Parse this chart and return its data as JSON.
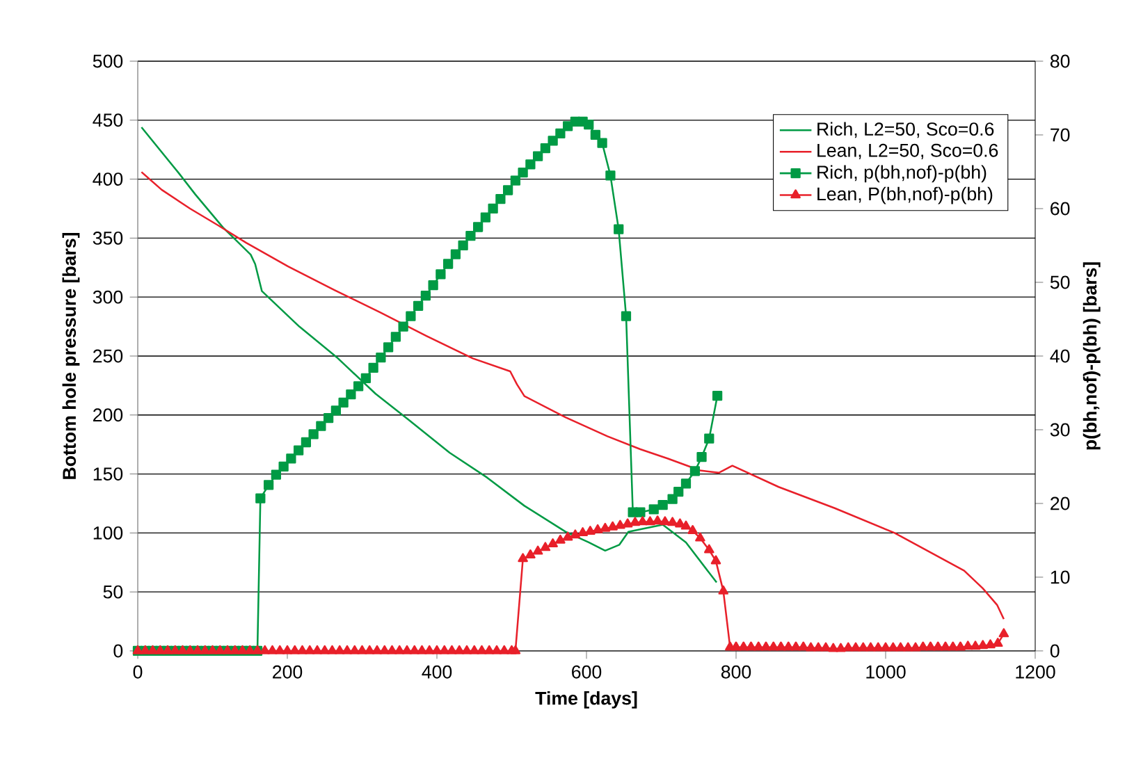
{
  "chart_data": {
    "type": "line",
    "xlabel": "Time [days]",
    "ylabel": "Bottom hole pressure [bars]",
    "y2label": "p(bh,nof)-p(bh) [bars]",
    "xlim": [
      0,
      1200
    ],
    "xticks": [
      0,
      200,
      400,
      600,
      800,
      1000,
      1200
    ],
    "ylim": [
      0,
      500
    ],
    "yticks": [
      0,
      50,
      100,
      150,
      200,
      250,
      300,
      350,
      400,
      450,
      500
    ],
    "y2lim": [
      0,
      80
    ],
    "y2ticks": [
      0,
      10,
      20,
      30,
      40,
      50,
      60,
      70,
      80
    ],
    "grid": "y",
    "legend": "top right",
    "line_style": "solid",
    "series": [
      {
        "name": "Rich, L2=50, Sco=0.6",
        "color": "#009a44",
        "marker": "none",
        "x": [
          5,
          55,
          77,
          114,
          151,
          157,
          166,
          216,
          266,
          318,
          362,
          417,
          467,
          517,
          572,
          603,
          625,
          644,
          656,
          702,
          733,
          774
        ],
        "values": [
          444,
          405,
          387,
          359,
          336,
          328,
          305,
          275,
          249,
          218,
          196,
          168,
          147,
          123,
          101,
          92,
          85,
          90,
          101,
          107,
          92,
          58
        ]
      },
      {
        "name": "Lean, L2=50, Sco=0.6",
        "color": "#e8202a",
        "marker": "none",
        "x": [
          5,
          32,
          70,
          107,
          145,
          201,
          263,
          324,
          386,
          448,
          498,
          507,
          517,
          572,
          628,
          672,
          709,
          752,
          777,
          795,
          857,
          932,
          1012,
          1105,
          1130,
          1149,
          1158
        ],
        "values": [
          406,
          391,
          375,
          361,
          346,
          326,
          306,
          287,
          267,
          248,
          237,
          226,
          216,
          198,
          182,
          171,
          163,
          153,
          151,
          157,
          139,
          121,
          100,
          68,
          53,
          39,
          27
        ]
      },
      {
        "name": "Rich, p(bh,nof)-p(bh)",
        "color": "#009a44",
        "marker": "square",
        "axis": "y2",
        "x": [
          0,
          10,
          20,
          30,
          40,
          50,
          60,
          70,
          80,
          90,
          100,
          110,
          120,
          130,
          140,
          150,
          160,
          164,
          175,
          185,
          195,
          205,
          215,
          225,
          235,
          245,
          255,
          265,
          275,
          285,
          295,
          305,
          315,
          325,
          335,
          345,
          355,
          365,
          375,
          385,
          395,
          405,
          415,
          425,
          435,
          445,
          455,
          465,
          475,
          485,
          495,
          505,
          515,
          525,
          535,
          545,
          555,
          565,
          575,
          585,
          595,
          603,
          612,
          621,
          632,
          643,
          653,
          662,
          672,
          690,
          702,
          715,
          723,
          733,
          745,
          754,
          764,
          775
        ],
        "values": [
          0,
          0,
          0,
          0,
          0,
          0,
          0,
          0,
          0,
          0,
          0,
          0,
          0,
          0,
          0,
          0,
          0,
          20.7,
          22.5,
          23.9,
          25,
          26.1,
          27.2,
          28.3,
          29.4,
          30.5,
          31.6,
          32.6,
          33.7,
          34.8,
          35.9,
          37,
          38.4,
          39.8,
          41.2,
          42.6,
          44,
          45.4,
          46.8,
          48.2,
          49.6,
          51.1,
          52.5,
          53.8,
          55,
          56.3,
          57.5,
          58.8,
          60,
          61.3,
          62.5,
          63.8,
          64.9,
          66,
          67.1,
          68.2,
          69.2,
          70.2,
          71.2,
          71.8,
          71.8,
          71.4,
          70,
          68.9,
          64.5,
          57.2,
          45.4,
          18.8,
          18.8,
          19.2,
          19.8,
          20.6,
          21.6,
          22.7,
          24.4,
          26.3,
          28.8,
          34.6
        ]
      },
      {
        "name": "Lean, P(bh,nof)-p(bh)",
        "color": "#e8202a",
        "marker": "triangle",
        "axis": "y2",
        "x": [
          0,
          10,
          20,
          30,
          40,
          50,
          60,
          70,
          80,
          90,
          100,
          110,
          120,
          130,
          140,
          150,
          160,
          170,
          180,
          190,
          200,
          210,
          220,
          230,
          240,
          250,
          260,
          270,
          280,
          290,
          300,
          310,
          320,
          330,
          340,
          350,
          360,
          370,
          380,
          390,
          400,
          410,
          420,
          430,
          440,
          450,
          460,
          470,
          480,
          490,
          500,
          505,
          515,
          525,
          535,
          545,
          555,
          565,
          575,
          585,
          595,
          605,
          615,
          625,
          635,
          645,
          655,
          665,
          675,
          685,
          695,
          705,
          715,
          725,
          733,
          742,
          752,
          764,
          773,
          783,
          792,
          800,
          810,
          820,
          830,
          840,
          850,
          860,
          870,
          880,
          890,
          900,
          910,
          920,
          930,
          940,
          950,
          960,
          970,
          980,
          990,
          1000,
          1010,
          1020,
          1030,
          1040,
          1050,
          1060,
          1070,
          1080,
          1090,
          1100,
          1110,
          1120,
          1130,
          1140,
          1150,
          1158
        ],
        "values": [
          0,
          0,
          0,
          0,
          0,
          0,
          0,
          0,
          0,
          0,
          0,
          0,
          0,
          0,
          0,
          0,
          0,
          0,
          0,
          0,
          0,
          0,
          0,
          0,
          0,
          0,
          0,
          0,
          0,
          0,
          0,
          0,
          0,
          0,
          0,
          0,
          0,
          0,
          0,
          0,
          0,
          0,
          0,
          0,
          0,
          0,
          0,
          0,
          0,
          0,
          0,
          0,
          12.5,
          13,
          13.5,
          14,
          14.5,
          15,
          15.4,
          15.7,
          16,
          16.2,
          16.4,
          16.6,
          16.8,
          17,
          17.2,
          17.4,
          17.5,
          17.5,
          17.6,
          17.5,
          17.4,
          17.2,
          16.9,
          16.3,
          15.3,
          13.7,
          12.2,
          8.1,
          0.5,
          0.5,
          0.5,
          0.5,
          0.5,
          0.5,
          0.5,
          0.5,
          0.5,
          0.5,
          0.5,
          0.4,
          0.4,
          0.4,
          0.3,
          0.3,
          0.4,
          0.4,
          0.4,
          0.4,
          0.4,
          0.4,
          0.4,
          0.4,
          0.4,
          0.4,
          0.5,
          0.5,
          0.5,
          0.5,
          0.5,
          0.5,
          0.6,
          0.6,
          0.7,
          0.8,
          1.0,
          2.3
        ]
      }
    ]
  }
}
